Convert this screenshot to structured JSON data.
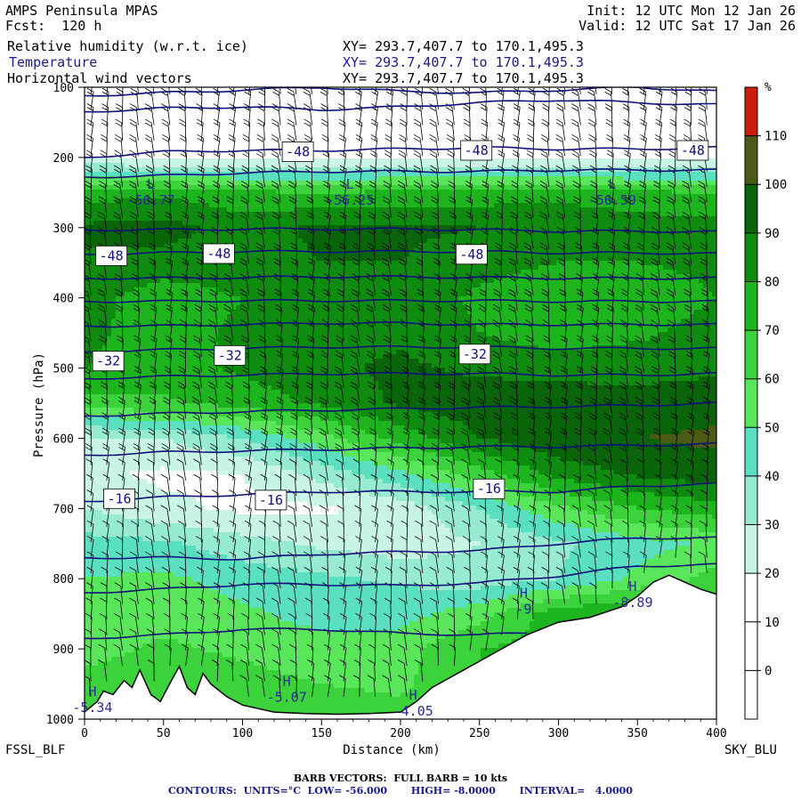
{
  "header": {
    "title": "AMPS Peninsula MPAS",
    "forecast": "Fcst:  120 h",
    "init": "Init: 12 UTC Mon 12 Jan 26",
    "valid": "Valid: 12 UTC Sat 17 Jan 26",
    "fields": [
      {
        "name": "Relative humidity (w.r.t. ice)",
        "xy": "XY= 293.7,407.7 to 170.1,495.3",
        "color": "#000000"
      },
      {
        "name": "Temperature",
        "xy": "XY= 293.7,407.7 to 170.1,495.3",
        "color": "#1a1a8c"
      },
      {
        "name": "Horizontal wind vectors",
        "xy": "XY= 293.7,407.7 to 170.1,495.3",
        "color": "#000000"
      }
    ]
  },
  "footer": {
    "left_label": "FSSL_BLF",
    "right_label": "SKY_BLU",
    "barb_note": "BARB VECTORS:  FULL BARB = 10 kts",
    "contours_note": "CONTOURS:  UNITS=°C  LOW= -56.000       HIGH= -8.0000       INTERVAL=   4.0000"
  },
  "chart_data": {
    "type": "heatmap",
    "xlabel": "Distance (km)",
    "ylabel": "Pressure (hPa)",
    "xlim": [
      0,
      400
    ],
    "ylim": [
      1000,
      100
    ],
    "x_ticks": [
      0,
      50,
      100,
      150,
      200,
      250,
      300,
      350,
      400
    ],
    "y_ticks": [
      100,
      200,
      300,
      400,
      500,
      600,
      700,
      800,
      900,
      1000
    ],
    "colorbar": {
      "unit": "%",
      "levels": [
        0,
        10,
        20,
        30,
        40,
        50,
        60,
        70,
        80,
        90,
        100,
        110
      ],
      "colors": [
        "#ffffff",
        "#ffffff",
        "#ffffff",
        "#c8f5e6",
        "#96ebd2",
        "#5ae0c0",
        "#5ae65a",
        "#3cd23c",
        "#1eb41e",
        "#0f8c0f",
        "#0a640a",
        "#4b5a14",
        "#c81e0a"
      ]
    },
    "rh_field": {
      "x": [
        0,
        50,
        100,
        150,
        200,
        250,
        300,
        350,
        400
      ],
      "p": [
        100,
        150,
        200,
        250,
        300,
        350,
        400,
        450,
        500,
        550,
        600,
        650,
        700,
        750,
        800,
        850,
        900,
        950,
        1000
      ],
      "values": [
        [
          12,
          10,
          10,
          12,
          14,
          12,
          10,
          10,
          12
        ],
        [
          14,
          12,
          12,
          14,
          14,
          12,
          12,
          12,
          14
        ],
        [
          18,
          16,
          16,
          18,
          18,
          16,
          16,
          16,
          18
        ],
        [
          75,
          78,
          72,
          70,
          72,
          74,
          76,
          72,
          70
        ],
        [
          92,
          94,
          86,
          92,
          92,
          90,
          90,
          86,
          84
        ],
        [
          88,
          86,
          86,
          90,
          90,
          84,
          80,
          80,
          82
        ],
        [
          84,
          74,
          80,
          86,
          86,
          78,
          72,
          74,
          80
        ],
        [
          82,
          76,
          82,
          86,
          88,
          80,
          74,
          78,
          84
        ],
        [
          80,
          76,
          82,
          88,
          92,
          88,
          86,
          86,
          88
        ],
        [
          66,
          68,
          74,
          82,
          92,
          96,
          96,
          94,
          96
        ],
        [
          28,
          30,
          40,
          56,
          74,
          90,
          98,
          100,
          102
        ],
        [
          22,
          18,
          20,
          34,
          48,
          66,
          84,
          92,
          96
        ],
        [
          30,
          22,
          18,
          18,
          24,
          40,
          58,
          70,
          76
        ],
        [
          44,
          42,
          34,
          28,
          24,
          30,
          38,
          46,
          52
        ],
        [
          50,
          52,
          46,
          42,
          38,
          34,
          40,
          52,
          64
        ],
        [
          54,
          56,
          52,
          46,
          46,
          56,
          76,
          82,
          72
        ],
        [
          56,
          62,
          58,
          54,
          56,
          70,
          74,
          72,
          70
        ],
        [
          64,
          66,
          64,
          60,
          58,
          70,
          70,
          70,
          70
        ],
        [
          70,
          72,
          70,
          66,
          64,
          70,
          70,
          70,
          70
        ]
      ]
    },
    "terrain": {
      "x": [
        0,
        8,
        12,
        18,
        25,
        30,
        35,
        42,
        48,
        55,
        60,
        65,
        70,
        75,
        80,
        90,
        100,
        110,
        120,
        140,
        160,
        180,
        200,
        210,
        220,
        240,
        260,
        280,
        300,
        320,
        340,
        350,
        360,
        370,
        380,
        390,
        400
      ],
      "p": [
        990,
        975,
        960,
        965,
        945,
        955,
        930,
        965,
        975,
        945,
        925,
        955,
        965,
        935,
        950,
        968,
        980,
        985,
        990,
        992,
        993,
        992,
        990,
        975,
        955,
        930,
        905,
        880,
        862,
        855,
        840,
        825,
        805,
        795,
        805,
        815,
        822
      ]
    },
    "temperature_contours": [
      {
        "label": "-48",
        "p": [
          112,
          108,
          104,
          100,
          106,
          108,
          104,
          100,
          106
        ]
      },
      {
        "label": "-48",
        "p": [
          135,
          130,
          128,
          132,
          128,
          122,
          118,
          122,
          125
        ]
      },
      {
        "label": "-48",
        "p": [
          200,
          192,
          190,
          190,
          188,
          186,
          188,
          188,
          186
        ]
      },
      {
        "label": "-48",
        "p": [
          228,
          226,
          222,
          220,
          220,
          220,
          218,
          218,
          218
        ]
      },
      {
        "label": "-48",
        "p": [
          303,
          303,
          302,
          302,
          302,
          303,
          305,
          305,
          306
        ]
      },
      {
        "label": "-48",
        "p": [
          338,
          336,
          334,
          334,
          334,
          334,
          336,
          336,
          337
        ]
      },
      {
        "label": "-44",
        "p": [
          372,
          372,
          371,
          370,
          370,
          371,
          372,
          372,
          372
        ]
      },
      {
        "label": "-40",
        "p": [
          405,
          405,
          404,
          404,
          404,
          404,
          405,
          405,
          405
        ]
      },
      {
        "label": "-36",
        "p": [
          440,
          440,
          438,
          436,
          436,
          438,
          438,
          438,
          438
        ]
      },
      {
        "label": "-32",
        "p": [
          477,
          474,
          472,
          470,
          470,
          470,
          472,
          472,
          472
        ]
      },
      {
        "label": "-28",
        "p": [
          515,
          512,
          510,
          508,
          508,
          508,
          510,
          510,
          508
        ]
      },
      {
        "label": "-24",
        "p": [
          568,
          565,
          562,
          560,
          558,
          556,
          555,
          553,
          550
        ]
      },
      {
        "label": "-20",
        "p": [
          624,
          620,
          618,
          616,
          614,
          612,
          612,
          610,
          608
        ]
      },
      {
        "label": "-16",
        "p": [
          690,
          684,
          680,
          676,
          676,
          676,
          676,
          668,
          665
        ]
      },
      {
        "label": "-12",
        "p": [
          770,
          770,
          772,
          765,
          762,
          760,
          750,
          742,
          742
        ]
      },
      {
        "label": "-8",
        "p": [
          820,
          815,
          808,
          808,
          810,
          806,
          796,
          782,
          780
        ]
      },
      {
        "label": "-8",
        "p": [
          885,
          880,
          872,
          872,
          878,
          880,
          876,
          866,
          860
        ]
      }
    ],
    "contour_labels": [
      {
        "text": "-48",
        "x": 135,
        "p": 192
      },
      {
        "text": "-48",
        "x": 248,
        "p": 190
      },
      {
        "text": "-48",
        "x": 385,
        "p": 190
      },
      {
        "text": "-48",
        "x": 17,
        "p": 340
      },
      {
        "text": "-48",
        "x": 85,
        "p": 337
      },
      {
        "text": "-48",
        "x": 245,
        "p": 338
      },
      {
        "text": "-32",
        "x": 15,
        "p": 490
      },
      {
        "text": "-32",
        "x": 92,
        "p": 482
      },
      {
        "text": "-32",
        "x": 247,
        "p": 480
      },
      {
        "text": "-16",
        "x": 22,
        "p": 686
      },
      {
        "text": "-16",
        "x": 118,
        "p": 688
      },
      {
        "text": "-16",
        "x": 256,
        "p": 672
      }
    ],
    "extrema": [
      {
        "kind": "L",
        "value": "-56.77",
        "x": 42,
        "p": 262
      },
      {
        "kind": "L",
        "value": "-56.25",
        "x": 168,
        "p": 262
      },
      {
        "kind": "L",
        "value": "-56.59",
        "x": 334,
        "p": 262
      },
      {
        "kind": "H",
        "value": "-5.34",
        "x": 5,
        "p": 985
      },
      {
        "kind": "H",
        "value": "-5.07",
        "x": 128,
        "p": 970
      },
      {
        "kind": "H",
        "value": "-4.05",
        "x": 208,
        "p": 990
      },
      {
        "kind": "H",
        "value": "-9",
        "x": 278,
        "p": 845
      },
      {
        "kind": "H",
        "value": "-8.89",
        "x": 347,
        "p": 835
      }
    ]
  }
}
